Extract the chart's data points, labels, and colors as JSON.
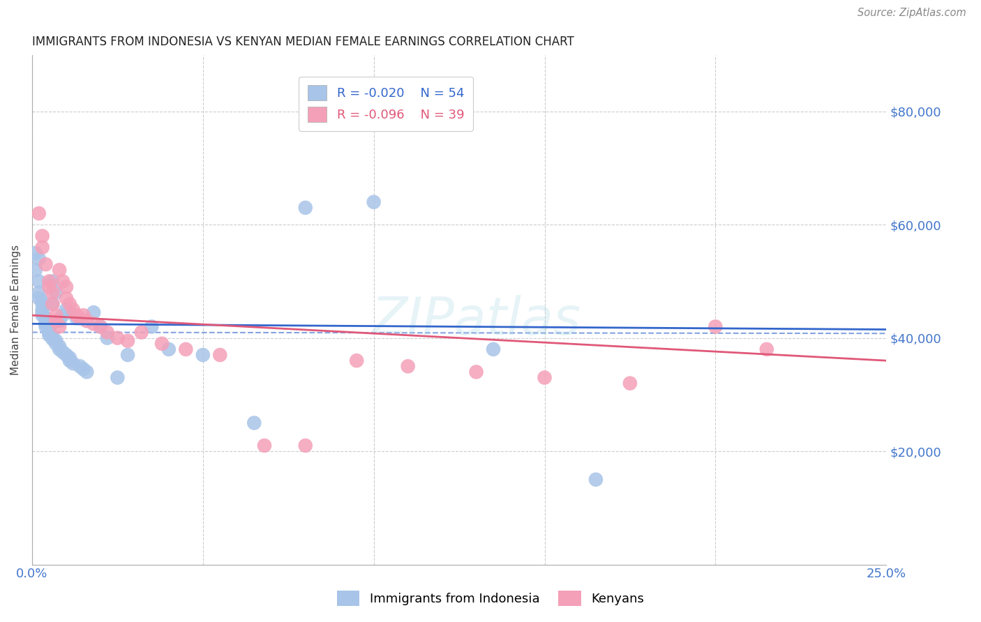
{
  "title": "IMMIGRANTS FROM INDONESIA VS KENYAN MEDIAN FEMALE EARNINGS CORRELATION CHART",
  "source": "Source: ZipAtlas.com",
  "ylabel": "Median Female Earnings",
  "xlim": [
    0,
    0.25
  ],
  "ylim": [
    0,
    90000
  ],
  "yticks": [
    0,
    20000,
    40000,
    60000,
    80000
  ],
  "ytick_labels": [
    "",
    "$20,000",
    "$40,000",
    "$60,000",
    "$80,000"
  ],
  "xticks": [
    0.0,
    0.05,
    0.1,
    0.15,
    0.2,
    0.25
  ],
  "xtick_labels": [
    "0.0%",
    "",
    "",
    "",
    "",
    "25.0%"
  ],
  "background_color": "#ffffff",
  "grid_color": "#cccccc",
  "watermark": "ZIPatlas",
  "legend_r1": "R = -0.020",
  "legend_n1": "N = 54",
  "legend_r2": "R = -0.096",
  "legend_n2": "N = 39",
  "series1_color": "#a8c4e8",
  "series2_color": "#f4a0b8",
  "trendline1_color": "#3366cc",
  "trendline2_color": "#e05878",
  "blue_label_color": "#4477cc",
  "series1_name": "Immigrants from Indonesia",
  "series2_name": "Kenyans",
  "scatter1_x": [
    0.001,
    0.001,
    0.002,
    0.002,
    0.002,
    0.002,
    0.003,
    0.003,
    0.003,
    0.003,
    0.003,
    0.004,
    0.004,
    0.004,
    0.004,
    0.005,
    0.005,
    0.005,
    0.005,
    0.005,
    0.006,
    0.006,
    0.006,
    0.006,
    0.007,
    0.007,
    0.007,
    0.008,
    0.008,
    0.008,
    0.009,
    0.009,
    0.01,
    0.01,
    0.011,
    0.011,
    0.012,
    0.013,
    0.014,
    0.015,
    0.016,
    0.018,
    0.02,
    0.022,
    0.025,
    0.028,
    0.035,
    0.04,
    0.05,
    0.065,
    0.08,
    0.1,
    0.135,
    0.165
  ],
  "scatter1_y": [
    55000,
    52000,
    54000,
    50000,
    48000,
    47000,
    46500,
    46000,
    45000,
    44500,
    44000,
    43500,
    43000,
    42500,
    42000,
    42000,
    41500,
    41200,
    40800,
    40500,
    40200,
    46000,
    50000,
    39800,
    39500,
    48000,
    39000,
    38500,
    43000,
    38000,
    37500,
    44000,
    45000,
    37000,
    36500,
    36000,
    35500,
    43500,
    35000,
    34500,
    34000,
    44500,
    42000,
    40000,
    33000,
    37000,
    42000,
    38000,
    37000,
    25000,
    63000,
    64000,
    38000,
    15000
  ],
  "scatter2_x": [
    0.002,
    0.003,
    0.003,
    0.004,
    0.005,
    0.005,
    0.006,
    0.006,
    0.007,
    0.007,
    0.008,
    0.008,
    0.009,
    0.01,
    0.01,
    0.011,
    0.012,
    0.013,
    0.014,
    0.015,
    0.016,
    0.018,
    0.02,
    0.022,
    0.025,
    0.028,
    0.032,
    0.038,
    0.045,
    0.055,
    0.068,
    0.08,
    0.095,
    0.11,
    0.13,
    0.15,
    0.175,
    0.2,
    0.215
  ],
  "scatter2_y": [
    62000,
    58000,
    56000,
    53000,
    50000,
    49000,
    48000,
    46000,
    44000,
    43000,
    42000,
    52000,
    50000,
    49000,
    47000,
    46000,
    45000,
    44000,
    43500,
    44000,
    43000,
    42500,
    42000,
    41000,
    40000,
    39500,
    41000,
    39000,
    38000,
    37000,
    21000,
    21000,
    36000,
    35000,
    34000,
    33000,
    32000,
    42000,
    38000
  ],
  "trendline1_x": [
    0.0,
    0.25
  ],
  "trendline1_y": [
    42500,
    41500
  ],
  "trendline2_x": [
    0.0,
    0.25
  ],
  "trendline2_y": [
    44000,
    36000
  ],
  "dashed_line_y": 40800
}
